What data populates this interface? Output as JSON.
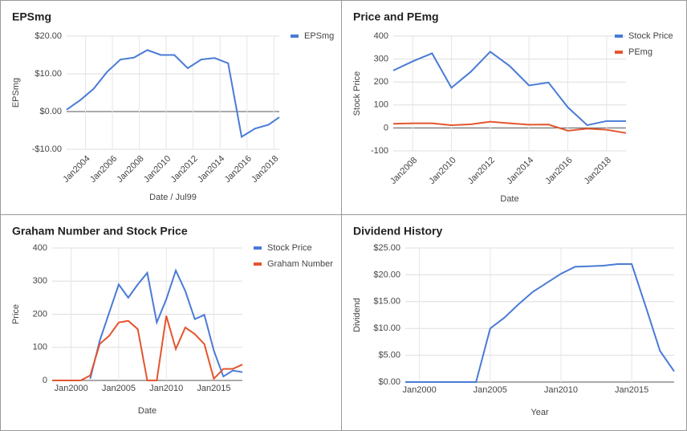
{
  "chart_data": [
    {
      "type": "line",
      "title": "EPSmg",
      "xlabel": "Date / Jul99",
      "ylabel": "EPSmg",
      "legend": "right",
      "x": [
        2002.6,
        2003.6,
        2004.6,
        2005.6,
        2006.6,
        2007.6,
        2008.6,
        2009.6,
        2010.6,
        2011.6,
        2012.6,
        2013.6,
        2014.6,
        2015.6,
        2016.6,
        2017.6,
        2018.4
      ],
      "xlim": [
        2002.6,
        2018.4
      ],
      "xticks": [
        {
          "value": 2004,
          "label": "Jan2004"
        },
        {
          "value": 2006,
          "label": "Jan2006"
        },
        {
          "value": 2008,
          "label": "Jan2008"
        },
        {
          "value": 2010,
          "label": "Jan2010"
        },
        {
          "value": 2012,
          "label": "Jan2012"
        },
        {
          "value": 2014,
          "label": "Jan2014"
        },
        {
          "value": 2016,
          "label": "Jan2016"
        },
        {
          "value": 2018,
          "label": "Jan2018"
        }
      ],
      "ylim": [
        -10,
        20
      ],
      "yticks": [
        {
          "value": -10,
          "label": "-$10.00"
        },
        {
          "value": 0,
          "label": "$0.00"
        },
        {
          "value": 10,
          "label": "$10.00"
        },
        {
          "value": 20,
          "label": "$20.00"
        }
      ],
      "series": [
        {
          "name": "EPSmg",
          "color": "#4a7bd6",
          "values": [
            0.5,
            3,
            6,
            10.5,
            13.8,
            14.3,
            16.3,
            15,
            15,
            11.5,
            13.8,
            14.2,
            12.8,
            -6.7,
            -4.5,
            -3.5,
            -1.5
          ]
        }
      ]
    },
    {
      "type": "line",
      "title": "Price and PEmg",
      "xlabel": "Date",
      "ylabel": "Stock Price",
      "legend": "right",
      "x": [
        2007,
        2008,
        2009,
        2010,
        2011,
        2012,
        2013,
        2014,
        2015,
        2016,
        2017,
        2018,
        2019
      ],
      "xlim": [
        2007,
        2019
      ],
      "xticks": [
        {
          "value": 2008,
          "label": "Jan2008"
        },
        {
          "value": 2010,
          "label": "Jan2010"
        },
        {
          "value": 2012,
          "label": "Jan2012"
        },
        {
          "value": 2014,
          "label": "Jan2014"
        },
        {
          "value": 2016,
          "label": "Jan2016"
        },
        {
          "value": 2018,
          "label": "Jan2018"
        }
      ],
      "ylim": [
        -100,
        400
      ],
      "yticks": [
        -100,
        0,
        100,
        200,
        300,
        400
      ],
      "series": [
        {
          "name": "Stock Price",
          "color": "#4a7bd6",
          "values": [
            250,
            290,
            325,
            175,
            245,
            332,
            270,
            185,
            198,
            90,
            12,
            30,
            30
          ]
        },
        {
          "name": "PEmg",
          "color": "#e4552f",
          "values": [
            18,
            20,
            20,
            12,
            16,
            27,
            20,
            14,
            15,
            -12,
            -3,
            -8,
            -22
          ]
        }
      ]
    },
    {
      "type": "line",
      "title": "Graham Number and Stock Price",
      "xlabel": "Date",
      "ylabel": "Price",
      "legend": "right",
      "x": [
        1998,
        1999,
        2000,
        2001,
        2002,
        2003,
        2004,
        2005,
        2006,
        2007,
        2008,
        2009,
        2010,
        2011,
        2012,
        2013,
        2014,
        2015,
        2016,
        2017,
        2018
      ],
      "xlim": [
        1998,
        2018
      ],
      "xticks": [
        {
          "value": 2000,
          "label": "Jan2000"
        },
        {
          "value": 2005,
          "label": "Jan2005"
        },
        {
          "value": 2010,
          "label": "Jan2010"
        },
        {
          "value": 2015,
          "label": "Jan2015"
        }
      ],
      "ylim": [
        0,
        400
      ],
      "yticks": [
        0,
        100,
        200,
        300,
        400
      ],
      "series": [
        {
          "name": "Stock Price",
          "color": "#4a7bd6",
          "values": [
            null,
            null,
            null,
            null,
            5,
            120,
            205,
            290,
            250,
            290,
            325,
            175,
            245,
            332,
            270,
            185,
            198,
            90,
            12,
            30,
            25
          ]
        },
        {
          "name": "Graham Number",
          "color": "#e4552f",
          "values": [
            0,
            0,
            0,
            0,
            15,
            110,
            135,
            175,
            180,
            155,
            0,
            0,
            195,
            95,
            160,
            140,
            110,
            5,
            35,
            35,
            48
          ]
        }
      ]
    },
    {
      "type": "line",
      "title": "Dividend History",
      "xlabel": "Year",
      "ylabel": "Dividend",
      "x": [
        1999,
        2000,
        2001,
        2002,
        2003,
        2004,
        2005,
        2006,
        2007,
        2008,
        2009,
        2010,
        2011,
        2012,
        2013,
        2014,
        2015,
        2016,
        2017,
        2018
      ],
      "xlim": [
        1999,
        2018
      ],
      "xticks": [
        {
          "value": 2000,
          "label": "Jan2000"
        },
        {
          "value": 2005,
          "label": "Jan2005"
        },
        {
          "value": 2010,
          "label": "Jan2010"
        },
        {
          "value": 2015,
          "label": "Jan2015"
        }
      ],
      "ylim": [
        0,
        25
      ],
      "yticks": [
        {
          "value": 0,
          "label": "$0.00"
        },
        {
          "value": 5,
          "label": "$5.00"
        },
        {
          "value": 10,
          "label": "$10.00"
        },
        {
          "value": 15,
          "label": "$15.00"
        },
        {
          "value": 20,
          "label": "$20.00"
        },
        {
          "value": 25,
          "label": "$25.00"
        }
      ],
      "series": [
        {
          "name": "Dividend",
          "color": "#4a7bd6",
          "values": [
            0,
            0,
            0,
            0,
            0,
            0,
            10,
            12,
            14.5,
            16.8,
            18.5,
            20.2,
            21.5,
            21.6,
            21.7,
            22,
            22,
            14,
            5.8,
            2
          ]
        }
      ]
    }
  ]
}
